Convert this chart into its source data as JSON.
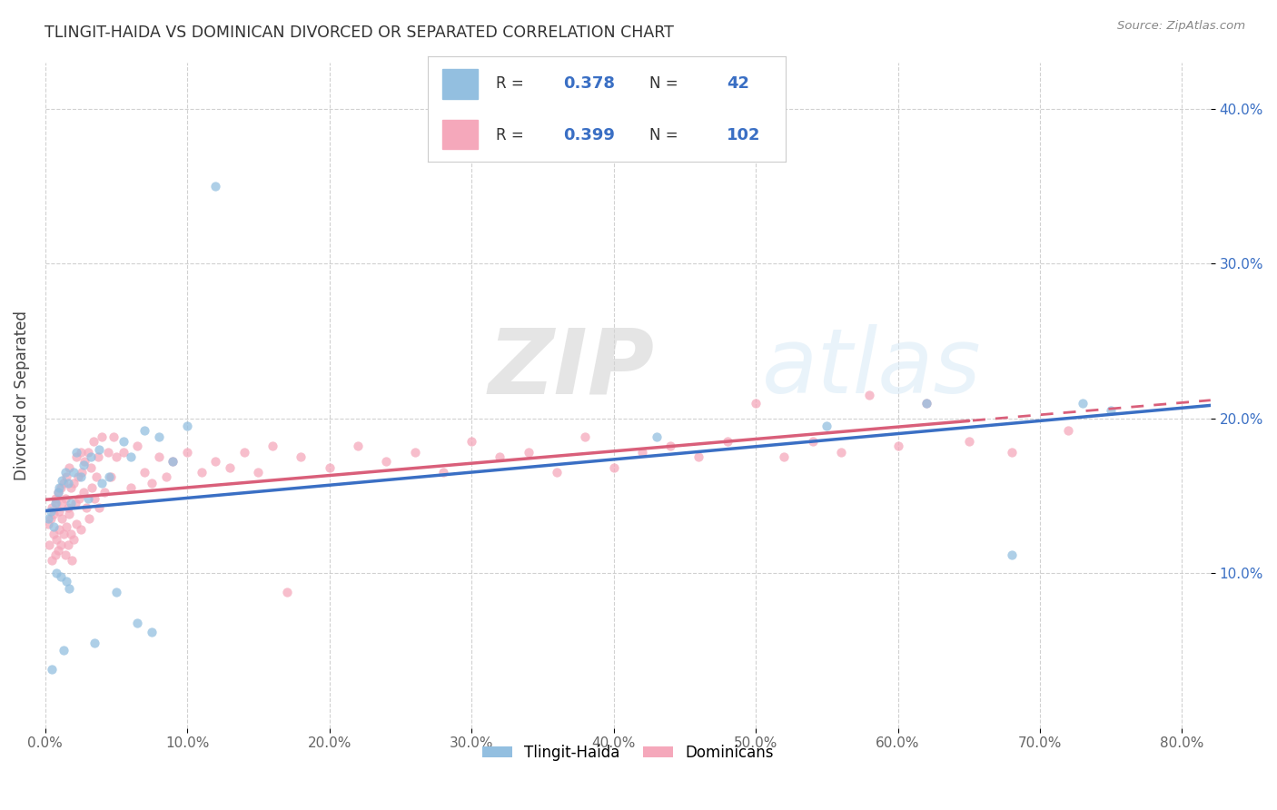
{
  "title": "TLINGIT-HAIDA VS DOMINICAN DIVORCED OR SEPARATED CORRELATION CHART",
  "source": "Source: ZipAtlas.com",
  "ylabel": "Divorced or Separated",
  "xlabel": "",
  "legend_label1": "Tlingit-Haida",
  "legend_label2": "Dominicans",
  "R1": 0.378,
  "N1": 42,
  "R2": 0.399,
  "N2": 102,
  "xlim": [
    0.0,
    0.82
  ],
  "ylim": [
    0.0,
    0.43
  ],
  "xticks": [
    0.0,
    0.1,
    0.2,
    0.3,
    0.4,
    0.5,
    0.6,
    0.7,
    0.8
  ],
  "yticks": [
    0.1,
    0.2,
    0.3,
    0.4
  ],
  "color1": "#93bfe0",
  "color2": "#f5a8bb",
  "trend1_color": "#3a6fc4",
  "trend2_color": "#d95f7a",
  "watermark_color": "#d8eaf7",
  "watermark_color2": "#c8d8e8",
  "legend_text_color": "#3a6fc4",
  "legend_label_color": "#333333",
  "title_color": "#333333",
  "source_color": "#888888",
  "grid_color": "#cccccc",
  "ytick_color": "#3a6fc4",
  "xtick_color": "#666666"
}
